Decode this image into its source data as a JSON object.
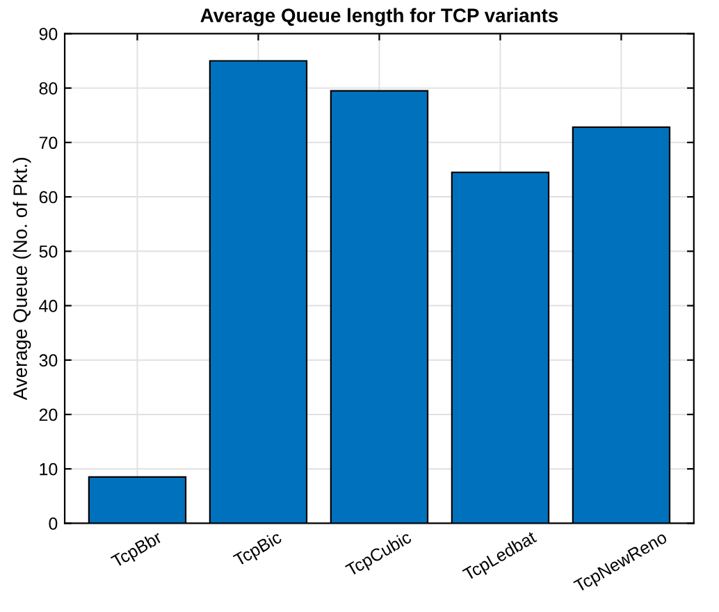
{
  "chart_data": {
    "type": "bar",
    "title": "Average Queue length for TCP variants",
    "ylabel": "Average Queue (No. of Pkt.)",
    "categories": [
      "TcpBbr",
      "TcpBic",
      "TcpCubic",
      "TcpLedbat",
      "TcpNewReno"
    ],
    "values": [
      8.5,
      85,
      79.5,
      64.5,
      72.8
    ],
    "color": "#0072bd",
    "ylim": [
      0,
      90
    ],
    "yticks": [
      0,
      10,
      20,
      30,
      40,
      50,
      60,
      70,
      80,
      90
    ],
    "grid": true
  }
}
